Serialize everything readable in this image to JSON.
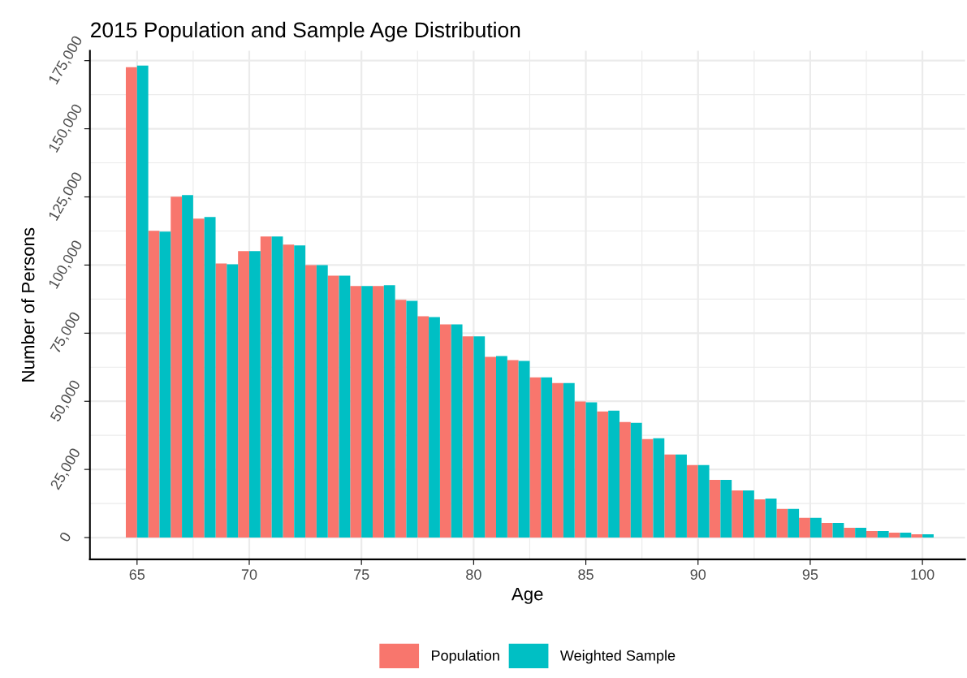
{
  "chart_data": {
    "type": "bar",
    "title": "2015 Population and Sample Age Distribution",
    "xlabel": "Age",
    "ylabel": "Number of Persons",
    "x": [
      65,
      66,
      67,
      68,
      69,
      70,
      71,
      72,
      73,
      74,
      75,
      76,
      77,
      78,
      79,
      80,
      81,
      82,
      83,
      84,
      85,
      86,
      87,
      88,
      89,
      90,
      91,
      92,
      93,
      94,
      95,
      96,
      97,
      98,
      99,
      100
    ],
    "series": [
      {
        "name": "Population",
        "color": "#f8766d",
        "values": [
          172600,
          112600,
          125100,
          117000,
          100600,
          105100,
          110500,
          107500,
          100000,
          96100,
          92300,
          92300,
          87200,
          81200,
          78200,
          73800,
          66300,
          65100,
          58800,
          56700,
          49900,
          46300,
          42400,
          36100,
          30500,
          26600,
          21200,
          17300,
          14000,
          10500,
          7200,
          5400,
          3600,
          2400,
          1800,
          1200
        ]
      },
      {
        "name": "Weighted Sample",
        "color": "#00bfc4",
        "values": [
          173200,
          112300,
          125700,
          117600,
          100300,
          105100,
          110500,
          107200,
          100000,
          96100,
          92300,
          92600,
          86900,
          80900,
          78200,
          73800,
          66600,
          64800,
          58800,
          56700,
          49600,
          46600,
          42100,
          36400,
          30500,
          26600,
          21200,
          17300,
          14300,
          10500,
          7200,
          5400,
          3600,
          2400,
          1800,
          1200
        ]
      }
    ],
    "xlim": [
      62.9,
      101.9
    ],
    "xticks": [
      65,
      70,
      75,
      80,
      85,
      90,
      95,
      100
    ],
    "ylim": [
      -8000,
      178600
    ],
    "yticks": [
      {
        "value": 0,
        "label": "0"
      },
      {
        "value": 25000,
        "label": "25,000"
      },
      {
        "value": 50000,
        "label": "50,000"
      },
      {
        "value": 75000,
        "label": "75,000"
      },
      {
        "value": 100000,
        "label": "100,000"
      },
      {
        "value": 125000,
        "label": "125,000"
      },
      {
        "value": 150000,
        "label": "150,000"
      },
      {
        "value": 175000,
        "label": "175,000"
      }
    ],
    "grid": true,
    "legend": "bottom"
  }
}
